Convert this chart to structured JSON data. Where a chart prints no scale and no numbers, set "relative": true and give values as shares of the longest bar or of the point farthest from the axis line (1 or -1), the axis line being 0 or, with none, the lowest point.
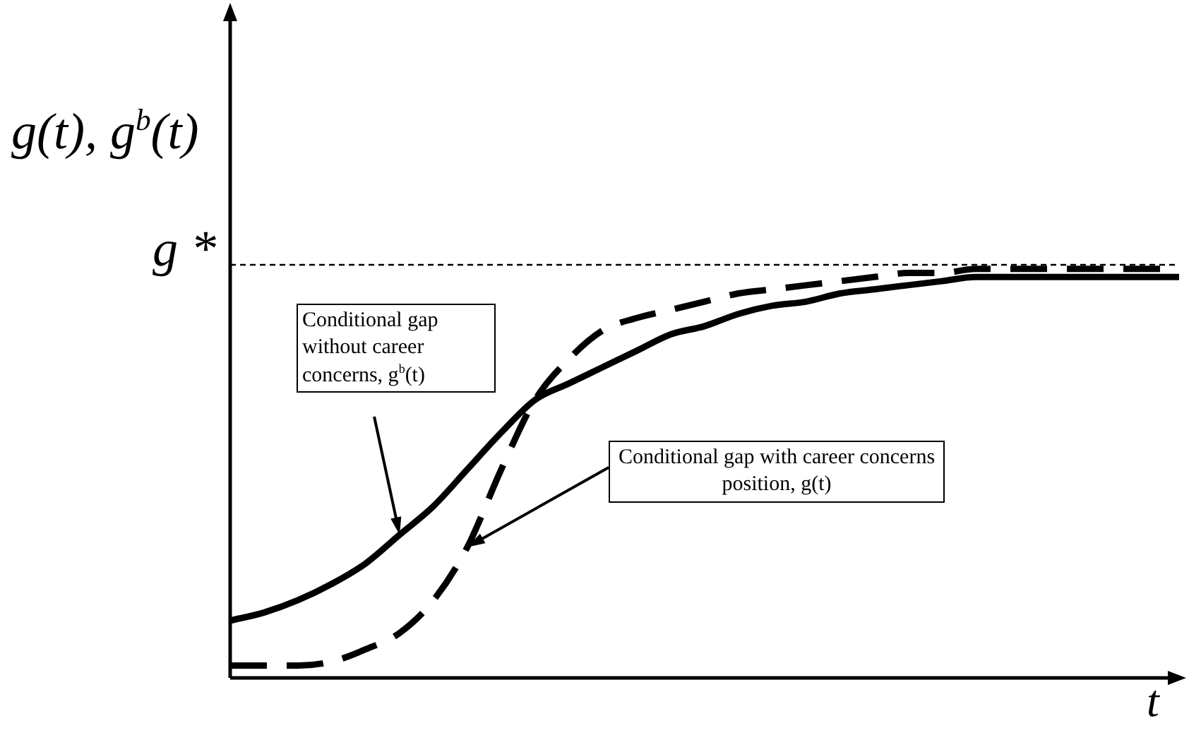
{
  "chart_data": {
    "type": "line",
    "relative": true,
    "xlabel": "t",
    "ylabel": "g(t), g$^{b}$(t)",
    "categories": [
      null,
      null,
      null,
      null,
      null,
      null,
      null,
      null,
      null,
      null,
      null,
      null,
      null,
      null,
      null,
      null,
      null,
      null,
      null,
      null,
      null,
      null,
      null,
      null,
      null,
      null,
      null,
      null,
      null
    ],
    "series": [
      {
        "color": "#000000",
        "line_style": "solid",
        "values": [
          0.14,
          0.16,
          0.19,
          0.23,
          0.28,
          0.35,
          0.42,
          0.51,
          0.6,
          0.68,
          0.72,
          0.76,
          0.8,
          0.84,
          0.86,
          0.89,
          0.91,
          0.92,
          0.94,
          0.95,
          0.96,
          0.97,
          0.98,
          0.98,
          0.98,
          0.98,
          0.98,
          0.98,
          0.98
        ]
      },
      {
        "color": "#000000",
        "line_style": "dashed",
        "values": [
          0.03,
          0.03,
          0.03,
          0.04,
          0.07,
          0.11,
          0.19,
          0.32,
          0.51,
          0.68,
          0.78,
          0.85,
          0.88,
          0.9,
          0.92,
          0.94,
          0.95,
          0.96,
          0.97,
          0.98,
          0.99,
          0.99,
          1,
          1,
          1,
          1,
          1,
          1,
          1
        ]
      }
    ],
    "ref_lines": [
      {
        "axis": "y",
        "value": 1.01,
        "label": "g *",
        "color": "#000000",
        "line_style": "dashed"
      }
    ],
    "annotations": [
      "Conditional gap without career concerns, g$^{b}$(t)",
      "Conditional gap with career concerns position, g(t)"
    ],
    "marker": "none",
    "legend": false,
    "tick_labels": false
  }
}
